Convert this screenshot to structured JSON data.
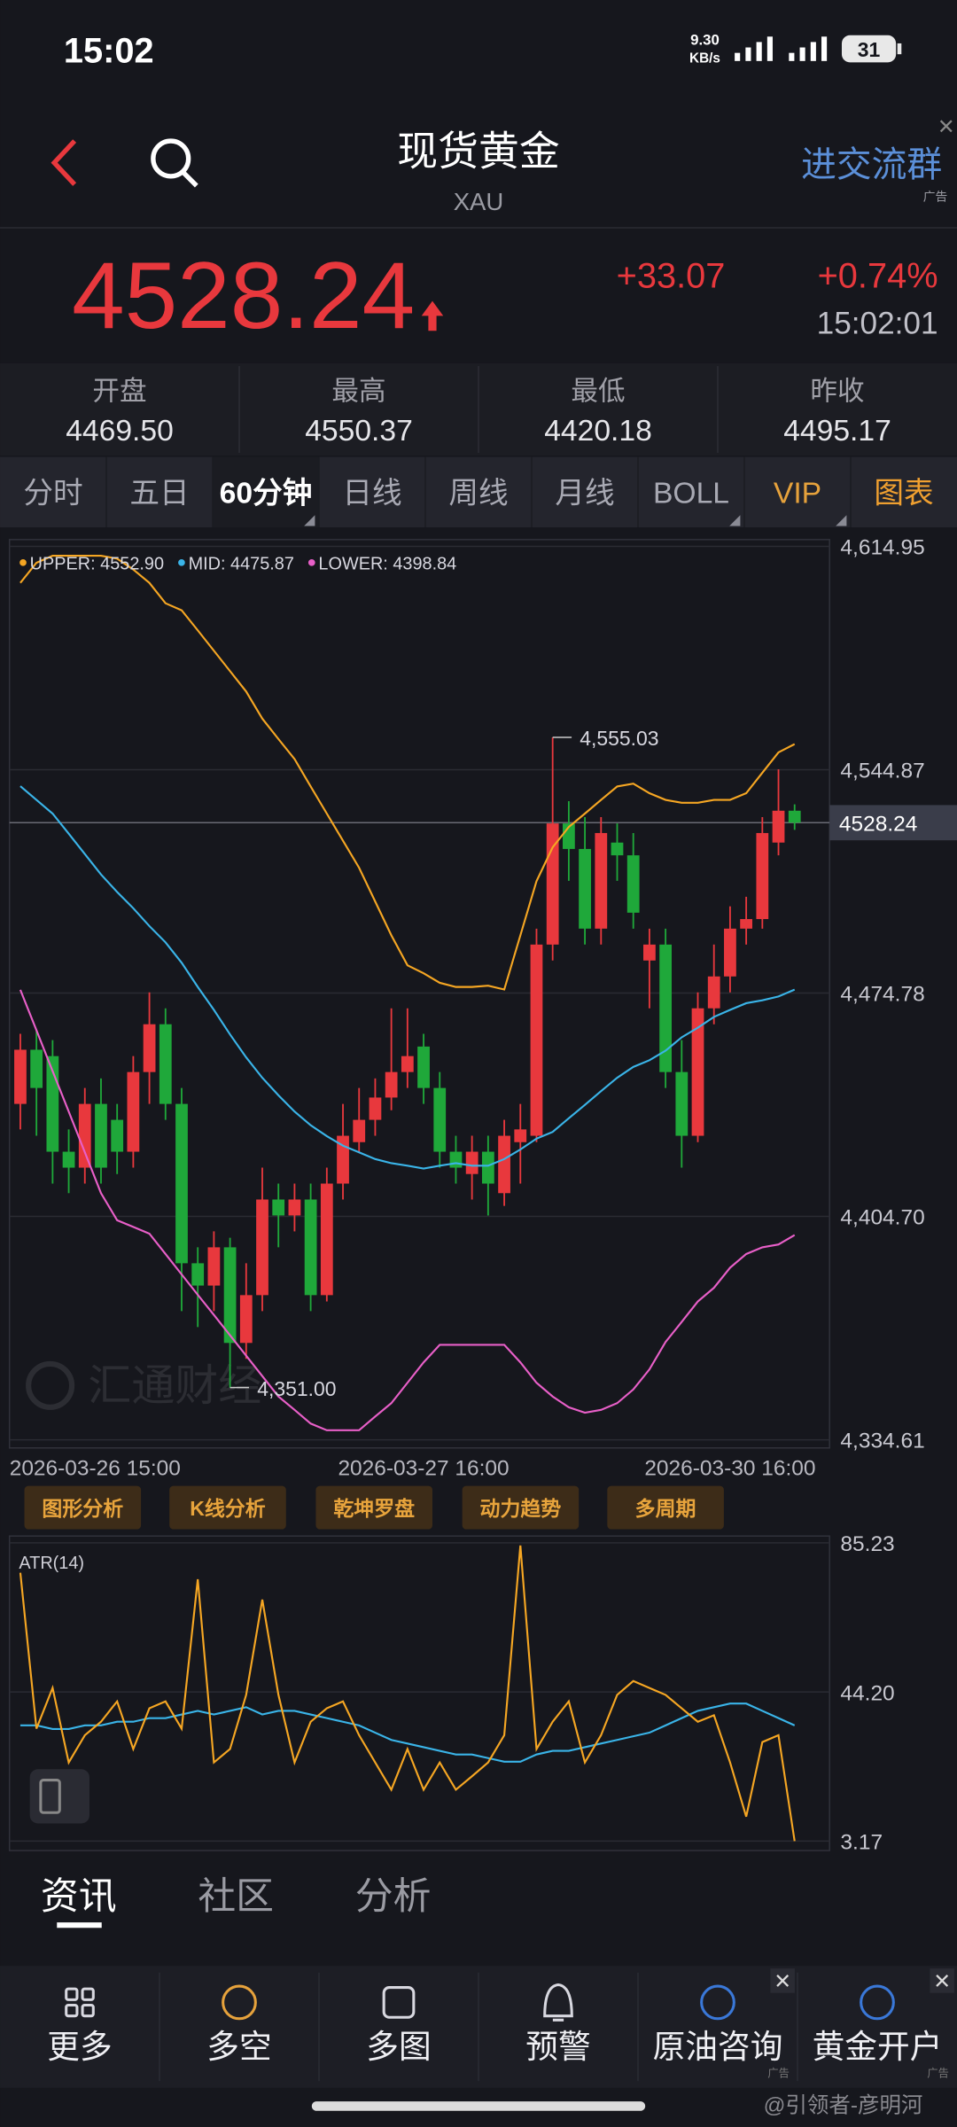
{
  "status_bar": {
    "time": "15:02",
    "speed": "9.30",
    "speed_unit": "KB/s",
    "battery": "31"
  },
  "header": {
    "title": "现货黄金",
    "subtitle": "XAU",
    "group_button": "进交流群",
    "ad_label": "广告"
  },
  "quote": {
    "price": "4528.24",
    "change": "+33.07",
    "change_pct": "+0.74%",
    "time": "15:02:01"
  },
  "stats": [
    {
      "label": "开盘",
      "value": "4469.50"
    },
    {
      "label": "最高",
      "value": "4550.37"
    },
    {
      "label": "最低",
      "value": "4420.18"
    },
    {
      "label": "昨收",
      "value": "4495.17"
    }
  ],
  "tabs": [
    "分时",
    "五日",
    "60分钟",
    "日线",
    "周线",
    "月线",
    "BOLL",
    "VIP",
    "图表"
  ],
  "tools": [
    "图形分析",
    "K线分析",
    "乾坤罗盘",
    "动力趋势",
    "多周期"
  ],
  "watermark": "汇通财经",
  "chart_data": [
    {
      "type": "candlestick",
      "up_color": "#e8383d",
      "down_color": "#1fa83a",
      "categories": [
        "2026-03-26 15:00",
        null,
        null,
        null,
        null,
        null,
        null,
        null,
        null,
        null,
        null,
        null,
        null,
        null,
        null,
        null,
        null,
        null,
        null,
        null,
        null,
        null,
        null,
        null,
        null,
        "2026-03-27 16:00",
        null,
        null,
        null,
        null,
        null,
        null,
        null,
        null,
        null,
        null,
        null,
        null,
        null,
        null,
        null,
        null,
        null,
        null,
        "2026-03-30 16:00",
        null,
        null,
        null,
        null
      ],
      "open": [
        4440,
        4457,
        4455,
        4425,
        4420,
        4440,
        4435,
        4425,
        4450,
        4465,
        4440,
        4390,
        4383,
        4395,
        4365,
        4380,
        4410,
        4405,
        4410,
        4380,
        4415,
        4428,
        4435,
        4442,
        4450,
        4458,
        4445,
        4425,
        4418,
        4425,
        4412,
        4428,
        4430,
        4490,
        4528,
        4520,
        4495,
        4522,
        4518,
        4485,
        4490,
        4450,
        4430,
        4470,
        4480,
        4495,
        4498,
        4522,
        4532
      ],
      "high": [
        4462,
        4463,
        4460,
        4432,
        4445,
        4448,
        4440,
        4455,
        4475,
        4470,
        4445,
        4395,
        4400,
        4398,
        4390,
        4420,
        4415,
        4415,
        4415,
        4420,
        4440,
        4445,
        4448,
        4470,
        4470,
        4462,
        4450,
        4430,
        4430,
        4430,
        4435,
        4440,
        4495,
        4555.03,
        4535,
        4530,
        4530,
        4528,
        4525,
        4495,
        4495,
        4460,
        4475,
        4490,
        4502,
        4505,
        4530,
        4545,
        4534
      ],
      "low": [
        4432,
        4430,
        4415,
        4412,
        4415,
        4415,
        4418,
        4420,
        4440,
        4435,
        4375,
        4370,
        4375,
        4351,
        4360,
        4375,
        4395,
        4400,
        4375,
        4378,
        4410,
        4425,
        4430,
        4438,
        4445,
        4440,
        4420,
        4415,
        4410,
        4405,
        4408,
        4415,
        4428,
        4485,
        4510,
        4490,
        4490,
        4510,
        4495,
        4470,
        4445,
        4420,
        4428,
        4465,
        4475,
        4490,
        4495,
        4518,
        4526
      ],
      "close": [
        4457,
        4445,
        4425,
        4420,
        4440,
        4420,
        4425,
        4450,
        4465,
        4440,
        4390,
        4383,
        4395,
        4365,
        4380,
        4410,
        4405,
        4410,
        4380,
        4415,
        4430,
        4435,
        4442,
        4450,
        4455,
        4445,
        4425,
        4420,
        4425,
        4415,
        4430,
        4432,
        4490,
        4528,
        4520,
        4495,
        4525,
        4518,
        4500,
        4490,
        4450,
        4430,
        4470,
        4480,
        4495,
        4498,
        4525,
        4532,
        4528.24
      ],
      "series": [
        {
          "name": "UPPER: 4552.90",
          "color": "#f5a623",
          "values": [
            4603.5,
            4609.8,
            4612.0,
            4612.0,
            4612.0,
            4612.0,
            4611.1,
            4607.7,
            4603.5,
            4597.1,
            4594.9,
            4588.6,
            4582.2,
            4575.8,
            4569.4,
            4560.9,
            4554.5,
            4548.2,
            4539.6,
            4531.1,
            4522.6,
            4514.1,
            4503.5,
            4492.9,
            4483.5,
            4481.0,
            4478.0,
            4476.7,
            4476.7,
            4477.1,
            4475.9,
            4492.9,
            4509.9,
            4520.5,
            4526.9,
            4531.1,
            4535.4,
            4539.6,
            4540.5,
            4537.5,
            4535.4,
            4534.5,
            4534.5,
            4535.4,
            4535.4,
            4537.5,
            4543.9,
            4550.3,
            4552.9
          ]
        },
        {
          "name": "MID: 4475.87",
          "color": "#3ab4e8",
          "values": [
            4539.7,
            4535.4,
            4531.1,
            4524.8,
            4518.4,
            4512.0,
            4506.5,
            4501.4,
            4495.8,
            4490.7,
            4484.3,
            4476.7,
            4469.5,
            4461.8,
            4454.6,
            4448.2,
            4442.7,
            4437.6,
            4433.3,
            4429.9,
            4426.9,
            4424.8,
            4422.7,
            4421.4,
            4420.6,
            4419.7,
            4420.6,
            4421.4,
            4420.6,
            4420.6,
            4422.7,
            4425.7,
            4429.1,
            4431.2,
            4435.5,
            4439.7,
            4444.0,
            4448.2,
            4451.6,
            4453.7,
            4456.7,
            4460.9,
            4463.9,
            4467.3,
            4469.5,
            4471.6,
            4472.5,
            4473.7,
            4475.87
          ]
        },
        {
          "name": "LOWER: 4398.84",
          "color": "#e85fc8",
          "values": [
            4475.8,
            4463.1,
            4450.3,
            4437.6,
            4424.8,
            4412.0,
            4403.5,
            4401.4,
            4399.3,
            4392.9,
            4386.5,
            4380.1,
            4373.8,
            4367.4,
            4361.0,
            4354.6,
            4348.2,
            4344.0,
            4339.7,
            4337.6,
            4337.6,
            4337.6,
            4341.9,
            4346.1,
            4352.5,
            4358.9,
            4364.4,
            4364.4,
            4364.4,
            4364.4,
            4364.4,
            4358.9,
            4352.5,
            4348.2,
            4344.8,
            4343.1,
            4344.0,
            4346.1,
            4350.4,
            4356.7,
            4365.3,
            4371.6,
            4378.0,
            4382.3,
            4388.6,
            4392.9,
            4395.0,
            4395.9,
            4398.84
          ]
        }
      ],
      "ylim": [
        4334.61,
        4614.95
      ],
      "yticks": [
        {
          "value": 4614.95,
          "label": "4,614.95"
        },
        {
          "value": 4544.87,
          "label": "4,544.87"
        },
        {
          "value": 4474.78,
          "label": "4,474.78"
        },
        {
          "value": 4404.7,
          "label": "4,404.70"
        },
        {
          "value": 4334.61,
          "label": "4,334.61"
        }
      ],
      "grid": true,
      "annotations": [
        {
          "text": "4,555.03",
          "value": 4555.03
        },
        {
          "text": "4,351.00",
          "value": 4351.0
        }
      ],
      "last_price": {
        "value": 4528.24,
        "label": "4528.24"
      }
    },
    {
      "type": "line",
      "title": "ATR(14)",
      "series": [
        {
          "color": "#3ab4e8",
          "values": [
            35,
            35,
            34,
            34,
            35,
            35,
            36,
            36,
            37,
            37,
            38,
            39,
            38,
            39,
            40,
            38,
            39,
            39,
            38,
            37,
            36,
            35,
            33,
            31,
            30,
            29,
            28,
            27,
            27,
            26,
            25,
            25,
            27,
            28,
            28,
            29,
            30,
            31,
            32,
            33,
            35,
            37,
            39,
            40,
            41,
            41,
            39,
            37,
            35
          ]
        },
        {
          "color": "#f5a623",
          "values": [
            77.0,
            34.1,
            45.3,
            24.8,
            32.3,
            36.0,
            41.6,
            28.5,
            39.7,
            41.6,
            34.1,
            75.2,
            24.8,
            28.5,
            43.4,
            69.6,
            43.4,
            24.8,
            36.0,
            39.7,
            41.6,
            32.3,
            24.8,
            17.3,
            28.5,
            17.3,
            24.8,
            17.3,
            21.0,
            24.8,
            32.3,
            84.5,
            28.5,
            36.0,
            41.6,
            24.8,
            32.3,
            43.4,
            47.2,
            45.3,
            43.4,
            39.7,
            36.0,
            37.8,
            24.8,
            9.9,
            30.4,
            32.3,
            3.17
          ]
        }
      ],
      "ylim": [
        3.17,
        85.23
      ],
      "yticks": [
        85.23,
        {
          "value": 44.2,
          "label": "44.20"
        },
        3.17
      ],
      "grid": true
    }
  ],
  "content_tabs": [
    "资讯",
    "社区",
    "分析"
  ],
  "nav": [
    {
      "label": "更多"
    },
    {
      "label": "多空"
    },
    {
      "label": "多图"
    },
    {
      "label": "预警"
    },
    {
      "label": "原油咨询",
      "ad": "广告"
    },
    {
      "label": "黄金开户",
      "ad": "广告"
    }
  ],
  "credit": "@引领者-彦明河"
}
